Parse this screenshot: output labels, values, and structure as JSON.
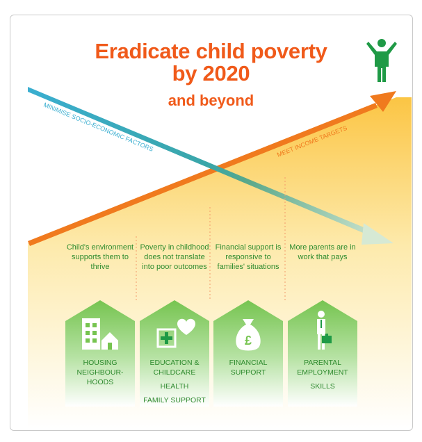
{
  "title": {
    "line1": "Eradicate child poverty",
    "line2": "by 2020",
    "line3": "and beyond"
  },
  "arrows": {
    "blue_label": "MINIMISE SOCIO-ECONOMIC FACTORS",
    "orange_label": "MEET INCOME TARGETS"
  },
  "outcomes": [
    {
      "text": "Child's environment supports them to thrive"
    },
    {
      "text": "Poverty in childhood does not translate into poor outcomes"
    },
    {
      "text": "Financial support is responsive to families' situations"
    },
    {
      "text": "More parents are in work that pays"
    }
  ],
  "houses": [
    {
      "icon": "buildings-icon",
      "lines": [
        "HOUSING",
        "NEIGHBOUR-",
        "HOODS"
      ]
    },
    {
      "icon": "medical-heart-icon",
      "lines": [
        "EDUCATION &",
        "CHILDCARE",
        "HEALTH",
        "FAMILY SUPPORT"
      ]
    },
    {
      "icon": "money-bag-icon",
      "lines": [
        "FINANCIAL",
        "SUPPORT"
      ]
    },
    {
      "icon": "worker-briefcase-icon",
      "lines": [
        "PARENTAL",
        "EMPLOYMENT",
        "SKILLS"
      ]
    }
  ],
  "goal_icon": "person-celebrating-icon",
  "colors": {
    "title": "#f05a1a",
    "orange": "#f07a1e",
    "blue": "#3aaed0",
    "green_text": "#2e8b2e",
    "house_green": "#6cc04a",
    "figure_green": "#1f9a46"
  }
}
